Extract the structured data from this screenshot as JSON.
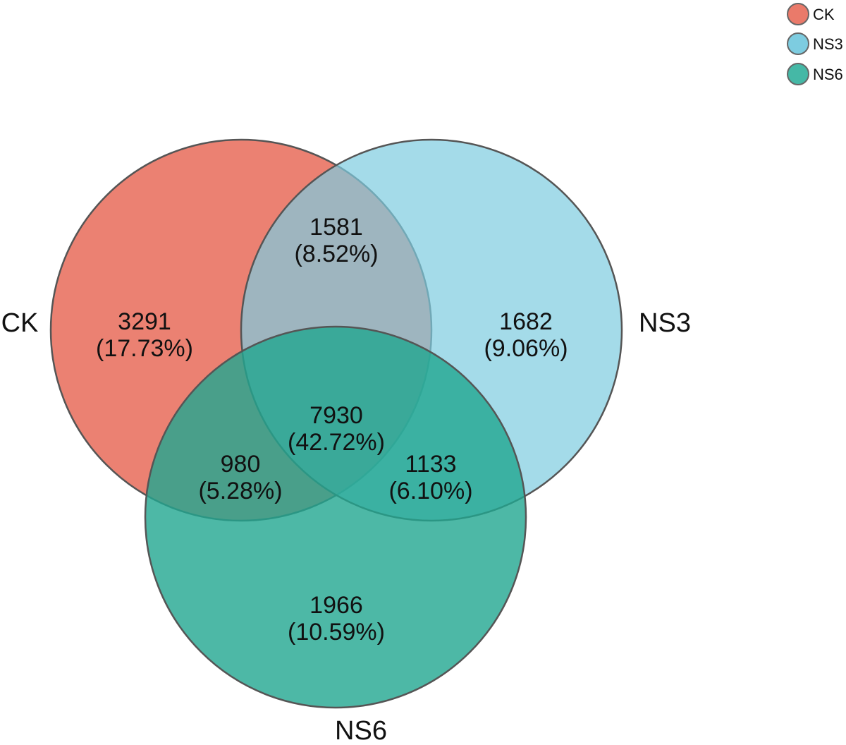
{
  "legend": [
    {
      "name": "CK",
      "color": "#EA7A6A"
    },
    {
      "name": "NS3",
      "color": "#7DCCE0"
    },
    {
      "name": "NS6",
      "color": "#45B8A6"
    }
  ],
  "sets": {
    "ck": {
      "label": "CK",
      "color": "#EA7A6A"
    },
    "ns3": {
      "label": "NS3",
      "color": "#7DCCE0"
    },
    "ns6": {
      "label": "NS6",
      "color": "#45B8A6"
    }
  },
  "regions": {
    "ck_only": {
      "count": "3291",
      "percent": "(17.73%)"
    },
    "ck_ns3": {
      "count": "1581",
      "percent": "(8.52%)"
    },
    "ns3_only": {
      "count": "1682",
      "percent": "(9.06%)"
    },
    "all_three": {
      "count": "7930",
      "percent": "(42.72%)"
    },
    "ck_ns6": {
      "count": "980",
      "percent": "(5.28%)"
    },
    "ns3_ns6": {
      "count": "1133",
      "percent": "(6.10%)"
    },
    "ns6_only": {
      "count": "1966",
      "percent": "(10.59%)"
    }
  }
}
